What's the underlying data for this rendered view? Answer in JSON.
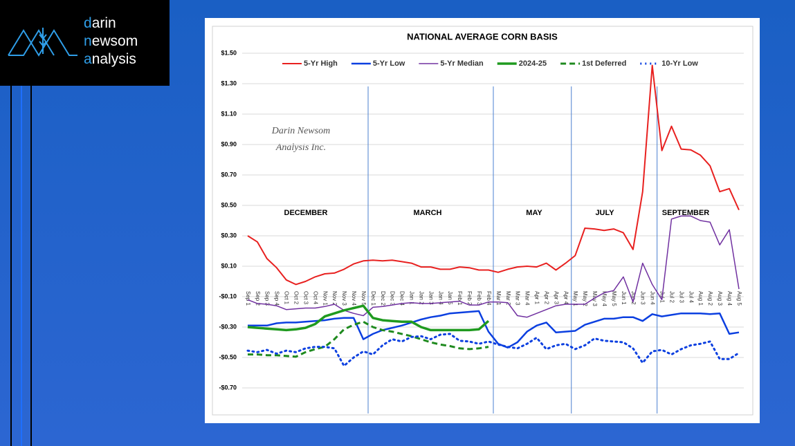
{
  "logo": {
    "lines": [
      "darin",
      "newsom",
      "analysis"
    ]
  },
  "chart_data": {
    "type": "line",
    "title": "NATIONAL AVERAGE CORN BASIS",
    "watermark": [
      "Darin Newsom",
      "Analysis Inc."
    ],
    "annotations": [
      "DECEMBER",
      "MARCH",
      "MAY",
      "JULY",
      "SEPTEMBER"
    ],
    "categories": [
      "Sep 1",
      "Sep 2",
      "Sep 3",
      "Sep 4",
      "Oct 1",
      "Oct 2",
      "Oct 3",
      "Oct 4",
      "Nov 1",
      "Nov 2",
      "Nov 3",
      "Nov 4",
      "Nov 5",
      "Dec 1",
      "Dec 2",
      "Dec 3",
      "Dec 4",
      "Jan 1",
      "Jan 2",
      "Jan 3",
      "Jan 4",
      "Jan 5",
      "Feb 1",
      "Feb 2",
      "Feb 3",
      "Feb 4",
      "Mar 1",
      "Mar 2",
      "Mar 3",
      "Mar 4",
      "Apr 1",
      "Apr 2",
      "Apr 3",
      "Apr 4",
      "May 1",
      "May 2",
      "May 3",
      "May 4",
      "May 5",
      "Jun 1",
      "Jun 2",
      "Jun 3",
      "Jun 4",
      "Jul 1",
      "Jul 2",
      "Jul 3",
      "Jul 4",
      "Aug 1",
      "Aug 2",
      "Aug 3",
      "Aug 4",
      "Aug 5"
    ],
    "ylim": [
      -0.7,
      1.5
    ],
    "yticks": [
      {
        "value": 1.5,
        "label": "$1.50"
      },
      {
        "value": 1.3,
        "label": "$1.30"
      },
      {
        "value": 1.1,
        "label": "$1.10"
      },
      {
        "value": 0.9,
        "label": "$0.90"
      },
      {
        "value": 0.7,
        "label": "$0.70"
      },
      {
        "value": 0.5,
        "label": "$0.50"
      },
      {
        "value": 0.3,
        "label": "$0.30"
      },
      {
        "value": 0.1,
        "label": "$0.10"
      },
      {
        "value": -0.1,
        "label": "-$0.10"
      },
      {
        "value": -0.3,
        "label": "-$0.30"
      },
      {
        "value": -0.5,
        "label": "-$0.50"
      },
      {
        "value": -0.7,
        "label": "-$0.70"
      }
    ],
    "grid": true,
    "legend": "top",
    "series": [
      {
        "name": "5-Yr High",
        "color": "#e8201f",
        "style": "solid",
        "values": [
          0.3,
          0.26,
          0.15,
          0.09,
          0.01,
          -0.02,
          0.0,
          0.03,
          0.05,
          0.055,
          0.08,
          0.115,
          0.135,
          0.14,
          0.135,
          0.14,
          0.13,
          0.12,
          0.095,
          0.095,
          0.08,
          0.08,
          0.095,
          0.09,
          0.075,
          0.075,
          0.06,
          0.08,
          0.095,
          0.1,
          0.095,
          0.12,
          0.075,
          0.12,
          0.17,
          0.35,
          0.345,
          0.335,
          0.345,
          0.32,
          0.21,
          0.59,
          1.42,
          0.86,
          1.02,
          0.87,
          0.865,
          0.83,
          0.76,
          0.59,
          0.61,
          0.47
        ]
      },
      {
        "name": "5-Yr Low",
        "color": "#0b3fe0",
        "style": "solid",
        "values": [
          -0.29,
          -0.29,
          -0.29,
          -0.275,
          -0.27,
          -0.27,
          -0.265,
          -0.26,
          -0.255,
          -0.245,
          -0.24,
          -0.24,
          -0.38,
          -0.345,
          -0.32,
          -0.305,
          -0.29,
          -0.27,
          -0.25,
          -0.235,
          -0.225,
          -0.21,
          -0.205,
          -0.2,
          -0.195,
          -0.33,
          -0.41,
          -0.435,
          -0.4,
          -0.33,
          -0.29,
          -0.27,
          -0.335,
          -0.33,
          -0.325,
          -0.285,
          -0.265,
          -0.245,
          -0.245,
          -0.235,
          -0.235,
          -0.26,
          -0.215,
          -0.23,
          -0.22,
          -0.21,
          -0.21,
          -0.21,
          -0.215,
          -0.21,
          -0.345,
          -0.335
        ]
      },
      {
        "name": "5-Yr Median",
        "color": "#7030a0",
        "style": "solid",
        "values": [
          -0.12,
          -0.145,
          -0.15,
          -0.16,
          -0.185,
          -0.18,
          -0.175,
          -0.175,
          -0.165,
          -0.15,
          -0.19,
          -0.21,
          -0.225,
          -0.17,
          -0.165,
          -0.155,
          -0.145,
          -0.14,
          -0.145,
          -0.145,
          -0.14,
          -0.135,
          -0.13,
          -0.155,
          -0.155,
          -0.135,
          -0.135,
          -0.14,
          -0.225,
          -0.235,
          -0.21,
          -0.185,
          -0.16,
          -0.15,
          -0.15,
          -0.15,
          -0.11,
          -0.075,
          -0.06,
          0.03,
          -0.135,
          0.12,
          -0.02,
          -0.12,
          0.41,
          0.43,
          0.43,
          0.4,
          0.39,
          0.24,
          0.34,
          -0.05
        ]
      },
      {
        "name": "2024-25",
        "color": "#1f9a1f",
        "style": "solid",
        "values": [
          -0.3,
          -0.305,
          -0.31,
          -0.315,
          -0.32,
          -0.315,
          -0.305,
          -0.28,
          -0.23,
          -0.21,
          -0.19,
          -0.175,
          -0.16,
          -0.24,
          -0.255,
          -0.26,
          -0.265,
          -0.265,
          -0.3,
          -0.32,
          -0.32,
          -0.32,
          -0.32,
          -0.32,
          -0.315,
          -0.26,
          null,
          null,
          null,
          null,
          null,
          null,
          null,
          null,
          null,
          null,
          null,
          null,
          null,
          null,
          null,
          null,
          null,
          null,
          null,
          null,
          null,
          null,
          null,
          null,
          null,
          null
        ]
      },
      {
        "name": "1st Deferred",
        "color": "#1f8a1f",
        "style": "dashed",
        "values": [
          -0.48,
          -0.48,
          -0.485,
          -0.485,
          -0.49,
          -0.495,
          -0.465,
          -0.445,
          -0.43,
          -0.38,
          -0.315,
          -0.285,
          -0.265,
          -0.3,
          -0.32,
          -0.33,
          -0.345,
          -0.36,
          -0.38,
          -0.4,
          -0.415,
          -0.425,
          -0.44,
          -0.445,
          -0.44,
          -0.43,
          null,
          null,
          null,
          null,
          null,
          null,
          null,
          null,
          null,
          null,
          null,
          null,
          null,
          null,
          null,
          null,
          null,
          null,
          null,
          null,
          null,
          null,
          null,
          null,
          null,
          null
        ]
      },
      {
        "name": "10-Yr Low",
        "color": "#0b3fe0",
        "style": "dotted",
        "values": [
          -0.455,
          -0.465,
          -0.45,
          -0.475,
          -0.455,
          -0.465,
          -0.44,
          -0.43,
          -0.43,
          -0.44,
          -0.555,
          -0.5,
          -0.46,
          -0.48,
          -0.42,
          -0.38,
          -0.395,
          -0.365,
          -0.36,
          -0.38,
          -0.35,
          -0.345,
          -0.39,
          -0.395,
          -0.41,
          -0.395,
          -0.415,
          -0.43,
          -0.44,
          -0.41,
          -0.37,
          -0.445,
          -0.42,
          -0.41,
          -0.445,
          -0.42,
          -0.375,
          -0.39,
          -0.395,
          -0.4,
          -0.44,
          -0.535,
          -0.46,
          -0.45,
          -0.48,
          -0.445,
          -0.42,
          -0.41,
          -0.395,
          -0.51,
          -0.51,
          -0.47
        ]
      }
    ]
  }
}
